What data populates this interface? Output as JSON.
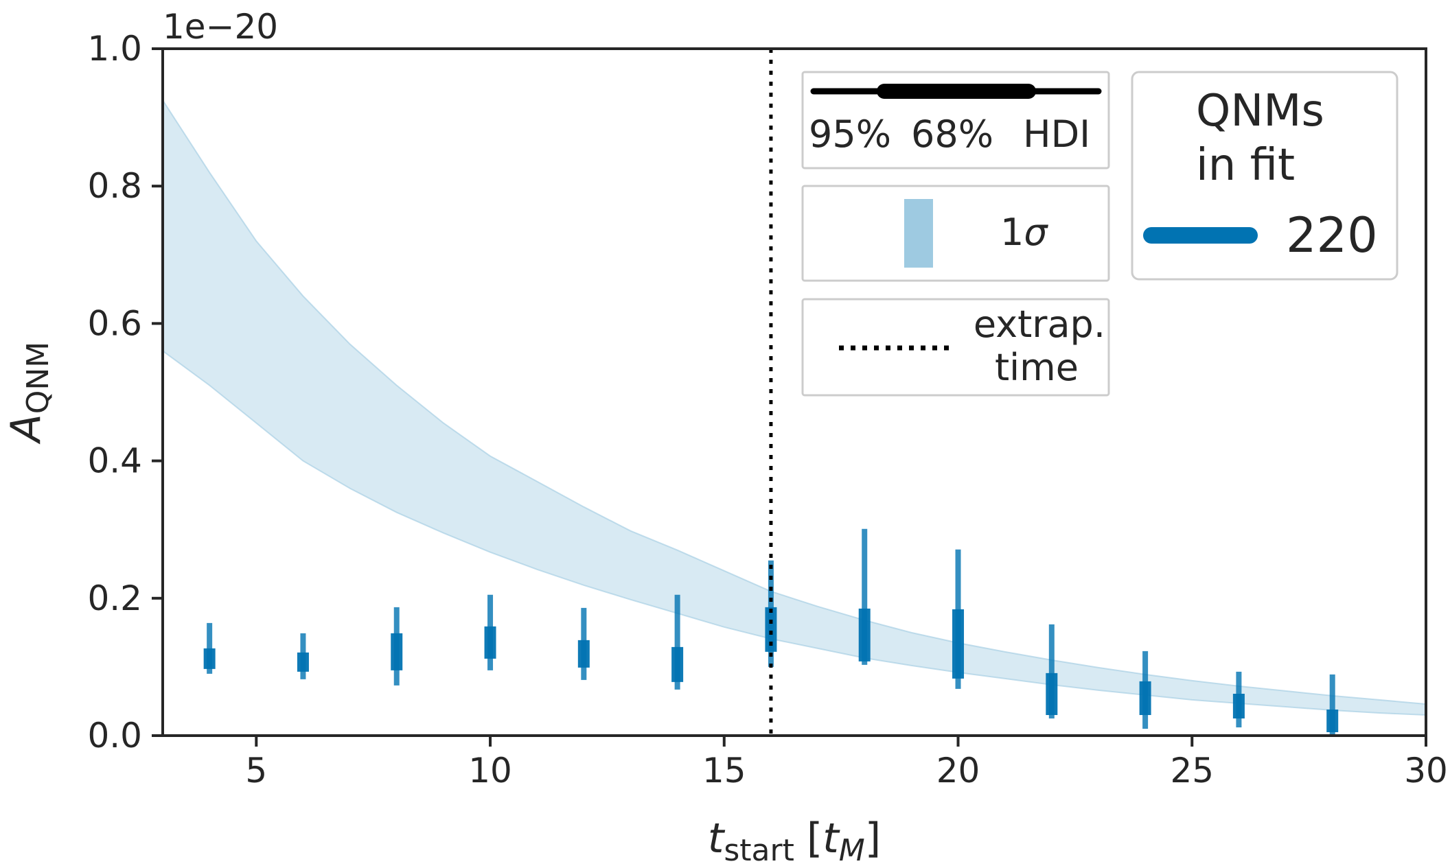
{
  "chart_data": {
    "type": "scatter",
    "xlabel": "t",
    "xlabel_sub": "start",
    "xlabel_unit_open": "[",
    "xlabel_unit": "t",
    "xlabel_unit_sub": "M",
    "xlabel_unit_close": "]",
    "ylabel": "A",
    "ylabel_sub": "QNM",
    "offset_text": "1e−20",
    "xlim": [
      3,
      30
    ],
    "ylim": [
      0.0,
      1.0
    ],
    "xticks": [
      5,
      10,
      15,
      20,
      25,
      30
    ],
    "xtick_labels": [
      "5",
      "10",
      "15",
      "20",
      "25",
      "30"
    ],
    "yticks": [
      0.0,
      0.2,
      0.4,
      0.6,
      0.8,
      1.0
    ],
    "ytick_labels": [
      "0.0",
      "0.2",
      "0.4",
      "0.6",
      "0.8",
      "1.0"
    ],
    "grid": false,
    "extrap_time": 16,
    "band_1sigma": {
      "x": [
        3.0,
        4.0,
        5.0,
        6.0,
        7.0,
        8.0,
        9.0,
        10.0,
        11.0,
        12.0,
        13.0,
        14.0,
        15.0,
        16.0,
        17.0,
        18.0,
        19.0,
        20.0,
        21.0,
        22.0,
        23.0,
        24.0,
        25.0,
        26.0,
        27.0,
        28.0,
        29.0,
        30.0
      ],
      "lower": [
        0.56,
        0.51,
        0.455,
        0.4,
        0.36,
        0.325,
        0.295,
        0.267,
        0.242,
        0.219,
        0.198,
        0.178,
        0.158,
        0.141,
        0.127,
        0.113,
        0.102,
        0.092,
        0.083,
        0.074,
        0.066,
        0.059,
        0.052,
        0.047,
        0.042,
        0.037,
        0.033,
        0.03
      ],
      "upper": [
        0.925,
        0.82,
        0.72,
        0.64,
        0.57,
        0.51,
        0.455,
        0.407,
        0.37,
        0.333,
        0.298,
        0.27,
        0.24,
        0.21,
        0.188,
        0.168,
        0.15,
        0.135,
        0.122,
        0.11,
        0.099,
        0.089,
        0.08,
        0.072,
        0.065,
        0.058,
        0.052,
        0.046
      ]
    },
    "points": [
      {
        "x": 4,
        "hdi95": [
          0.09,
          0.164
        ],
        "hdi68": [
          0.097,
          0.127
        ]
      },
      {
        "x": 6,
        "hdi95": [
          0.082,
          0.149
        ],
        "hdi68": [
          0.093,
          0.121
        ]
      },
      {
        "x": 8,
        "hdi95": [
          0.073,
          0.187
        ],
        "hdi68": [
          0.095,
          0.149
        ]
      },
      {
        "x": 10,
        "hdi95": [
          0.095,
          0.205
        ],
        "hdi68": [
          0.112,
          0.159
        ]
      },
      {
        "x": 12,
        "hdi95": [
          0.081,
          0.186
        ],
        "hdi68": [
          0.099,
          0.139
        ]
      },
      {
        "x": 14,
        "hdi95": [
          0.067,
          0.205
        ],
        "hdi68": [
          0.078,
          0.129
        ]
      },
      {
        "x": 16,
        "hdi95": [
          0.1,
          0.255
        ],
        "hdi68": [
          0.122,
          0.187
        ]
      },
      {
        "x": 18,
        "hdi95": [
          0.103,
          0.301
        ],
        "hdi68": [
          0.108,
          0.185
        ]
      },
      {
        "x": 20,
        "hdi95": [
          0.068,
          0.271
        ],
        "hdi68": [
          0.083,
          0.184
        ]
      },
      {
        "x": 22,
        "hdi95": [
          0.025,
          0.162
        ],
        "hdi68": [
          0.03,
          0.091
        ]
      },
      {
        "x": 24,
        "hdi95": [
          0.01,
          0.123
        ],
        "hdi68": [
          0.03,
          0.079
        ]
      },
      {
        "x": 26,
        "hdi95": [
          0.012,
          0.093
        ],
        "hdi68": [
          0.025,
          0.061
        ]
      },
      {
        "x": 28,
        "hdi95": [
          0.002,
          0.089
        ],
        "hdi68": [
          0.005,
          0.038
        ]
      }
    ],
    "series": [
      {
        "name": "220",
        "color": "#0173b2"
      }
    ],
    "band_color": "#9ecae1",
    "legend": {
      "placement": "top-right",
      "hdi": {
        "label_95": "95%",
        "label_68": "68%",
        "label_hdi": "HDI"
      },
      "sigma": {
        "label_num": "1",
        "label_sym": "σ"
      },
      "extrap": {
        "line1": "extrap.",
        "line2": "time"
      },
      "qnm": {
        "title_line1": "QNMs",
        "title_line2": "in fit",
        "entry": "220"
      }
    }
  }
}
